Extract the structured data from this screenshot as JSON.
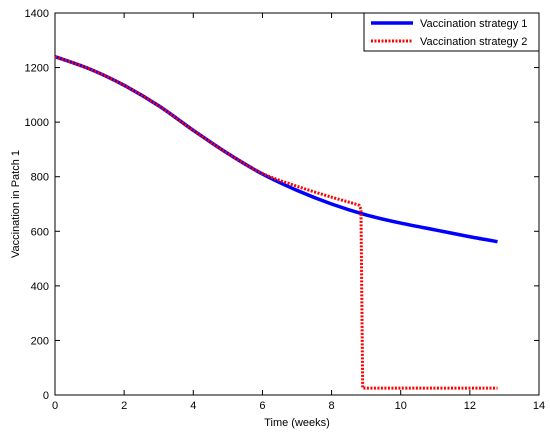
{
  "chart_data": {
    "type": "line",
    "xlabel": "Time (weeks)",
    "ylabel": "Vaccination in Patch 1",
    "xlim": [
      0,
      14
    ],
    "ylim": [
      0,
      1400
    ],
    "xticks": [
      0,
      2,
      4,
      6,
      8,
      10,
      12,
      14
    ],
    "yticks": [
      0,
      200,
      400,
      600,
      800,
      1000,
      1200,
      1400
    ],
    "grid": false,
    "legend_position": "top-right",
    "series": [
      {
        "name": "Vaccination strategy 1",
        "color": "#0000ff",
        "style": "solid",
        "x": [
          0,
          1,
          2,
          3,
          4,
          5,
          6,
          7,
          8,
          9,
          10,
          11,
          12,
          12.8
        ],
        "y": [
          1240,
          1195,
          1135,
          1060,
          970,
          885,
          810,
          750,
          700,
          660,
          630,
          605,
          580,
          562
        ]
      },
      {
        "name": "Vaccination strategy 2",
        "color": "#ff0000",
        "style": "dotted",
        "x": [
          0,
          1,
          2,
          3,
          4,
          5,
          6,
          7,
          8,
          8.8,
          8.85,
          8.9,
          10,
          12,
          12.8
        ],
        "y": [
          1240,
          1195,
          1135,
          1060,
          970,
          885,
          812,
          765,
          725,
          695,
          680,
          25,
          25,
          25,
          25
        ]
      }
    ]
  }
}
